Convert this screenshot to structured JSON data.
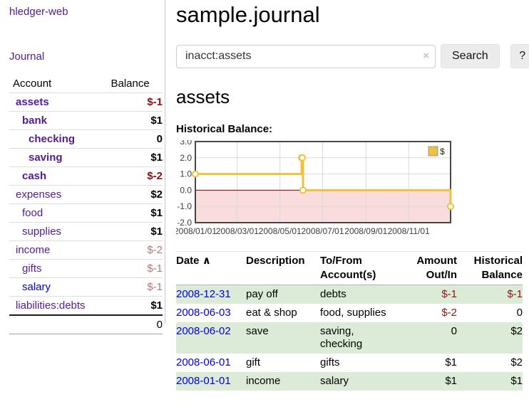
{
  "app": {
    "title": "hledger-web"
  },
  "sidebar": {
    "journal_label": "Journal",
    "table": {
      "account_header": "Account",
      "balance_header": "Balance",
      "accounts": [
        {
          "name": "assets",
          "balance": "$-1"
        },
        {
          "name": "bank",
          "balance": "$1"
        },
        {
          "name": "checking",
          "balance": "0"
        },
        {
          "name": "saving",
          "balance": "$1"
        },
        {
          "name": "cash",
          "balance": "$-2"
        },
        {
          "name": "expenses",
          "balance": "$2"
        },
        {
          "name": "food",
          "balance": "$1"
        },
        {
          "name": "supplies",
          "balance": "$1"
        },
        {
          "name": "income",
          "balance": "$-2"
        },
        {
          "name": "gifts",
          "balance": "$-1"
        },
        {
          "name": "salary",
          "balance": "$-1"
        },
        {
          "name": "liabilities:debts",
          "balance": "$1"
        }
      ],
      "total": "0"
    }
  },
  "main": {
    "title": "sample.journal",
    "search": {
      "value": "inacct:assets",
      "clear_icon": "×",
      "button_label": "Search",
      "help_label": "?"
    },
    "account_heading": "assets",
    "chart_label": "Historical Balance:"
  },
  "chart_data": {
    "type": "line",
    "step": true,
    "title": "Historical Balance",
    "series": [
      {
        "name": "$",
        "color": "#edc240",
        "points": [
          [
            "2008-01-01",
            1
          ],
          [
            "2008-06-01",
            2
          ],
          [
            "2008-06-02",
            2
          ],
          [
            "2008-06-03",
            0
          ],
          [
            "2008-12-31",
            -1
          ]
        ]
      }
    ],
    "xlim": [
      "2008-01-01",
      "2008-12-31"
    ],
    "ylim": [
      -2,
      3
    ],
    "y_ticks": [
      "3.0",
      "2.0",
      "1.0",
      "0.0",
      "-1.0",
      "-2.0"
    ],
    "x_ticks": [
      {
        "date": "2008-01-01",
        "label": "2008/01/01"
      },
      {
        "date": "2008-03-01",
        "label": "2008/03/01"
      },
      {
        "date": "2008-05-01",
        "label": "2008/05/01"
      },
      {
        "date": "2008-07-01",
        "label": "2008/07/01"
      },
      {
        "date": "2008-09-01",
        "label": "2008/09/01"
      },
      {
        "date": "2008-11-01",
        "label": "2008/11/01"
      }
    ],
    "grid": true,
    "legend": {
      "label": "$",
      "position": "top-right"
    },
    "negative_region_color": "#fadcdc",
    "zero_line_color": "#8b0000",
    "border_color": "#474747",
    "grid_color": "#d9d9d9"
  },
  "transactions": {
    "headers": {
      "date": "Date",
      "sort_indicator": "∧",
      "description": "Description",
      "accounts": "To/From Account(s)",
      "amount": "Amount Out/In",
      "balance": "Historical Balance"
    },
    "rows": [
      {
        "date": "2008-12-31",
        "description": "pay off",
        "accounts": "debts",
        "amount": "$-1",
        "balance": "$-1"
      },
      {
        "date": "2008-06-03",
        "description": "eat & shop",
        "accounts": "food, supplies",
        "amount": "$-2",
        "balance": "0"
      },
      {
        "date": "2008-06-02",
        "description": "save",
        "accounts": "saving, checking",
        "amount": "0",
        "balance": "$2"
      },
      {
        "date": "2008-06-01",
        "description": "gift",
        "accounts": "gifts",
        "amount": "$1",
        "balance": "$2"
      },
      {
        "date": "2008-01-01",
        "description": "income",
        "accounts": "salary",
        "amount": "$1",
        "balance": "$1"
      }
    ]
  },
  "colors": {
    "link_purple": "#551b92",
    "link_blue": "#0000e0",
    "negative_strong": "#8b0f0f",
    "negative_soft": "#bb7373",
    "row_green": "#dcebd8"
  }
}
